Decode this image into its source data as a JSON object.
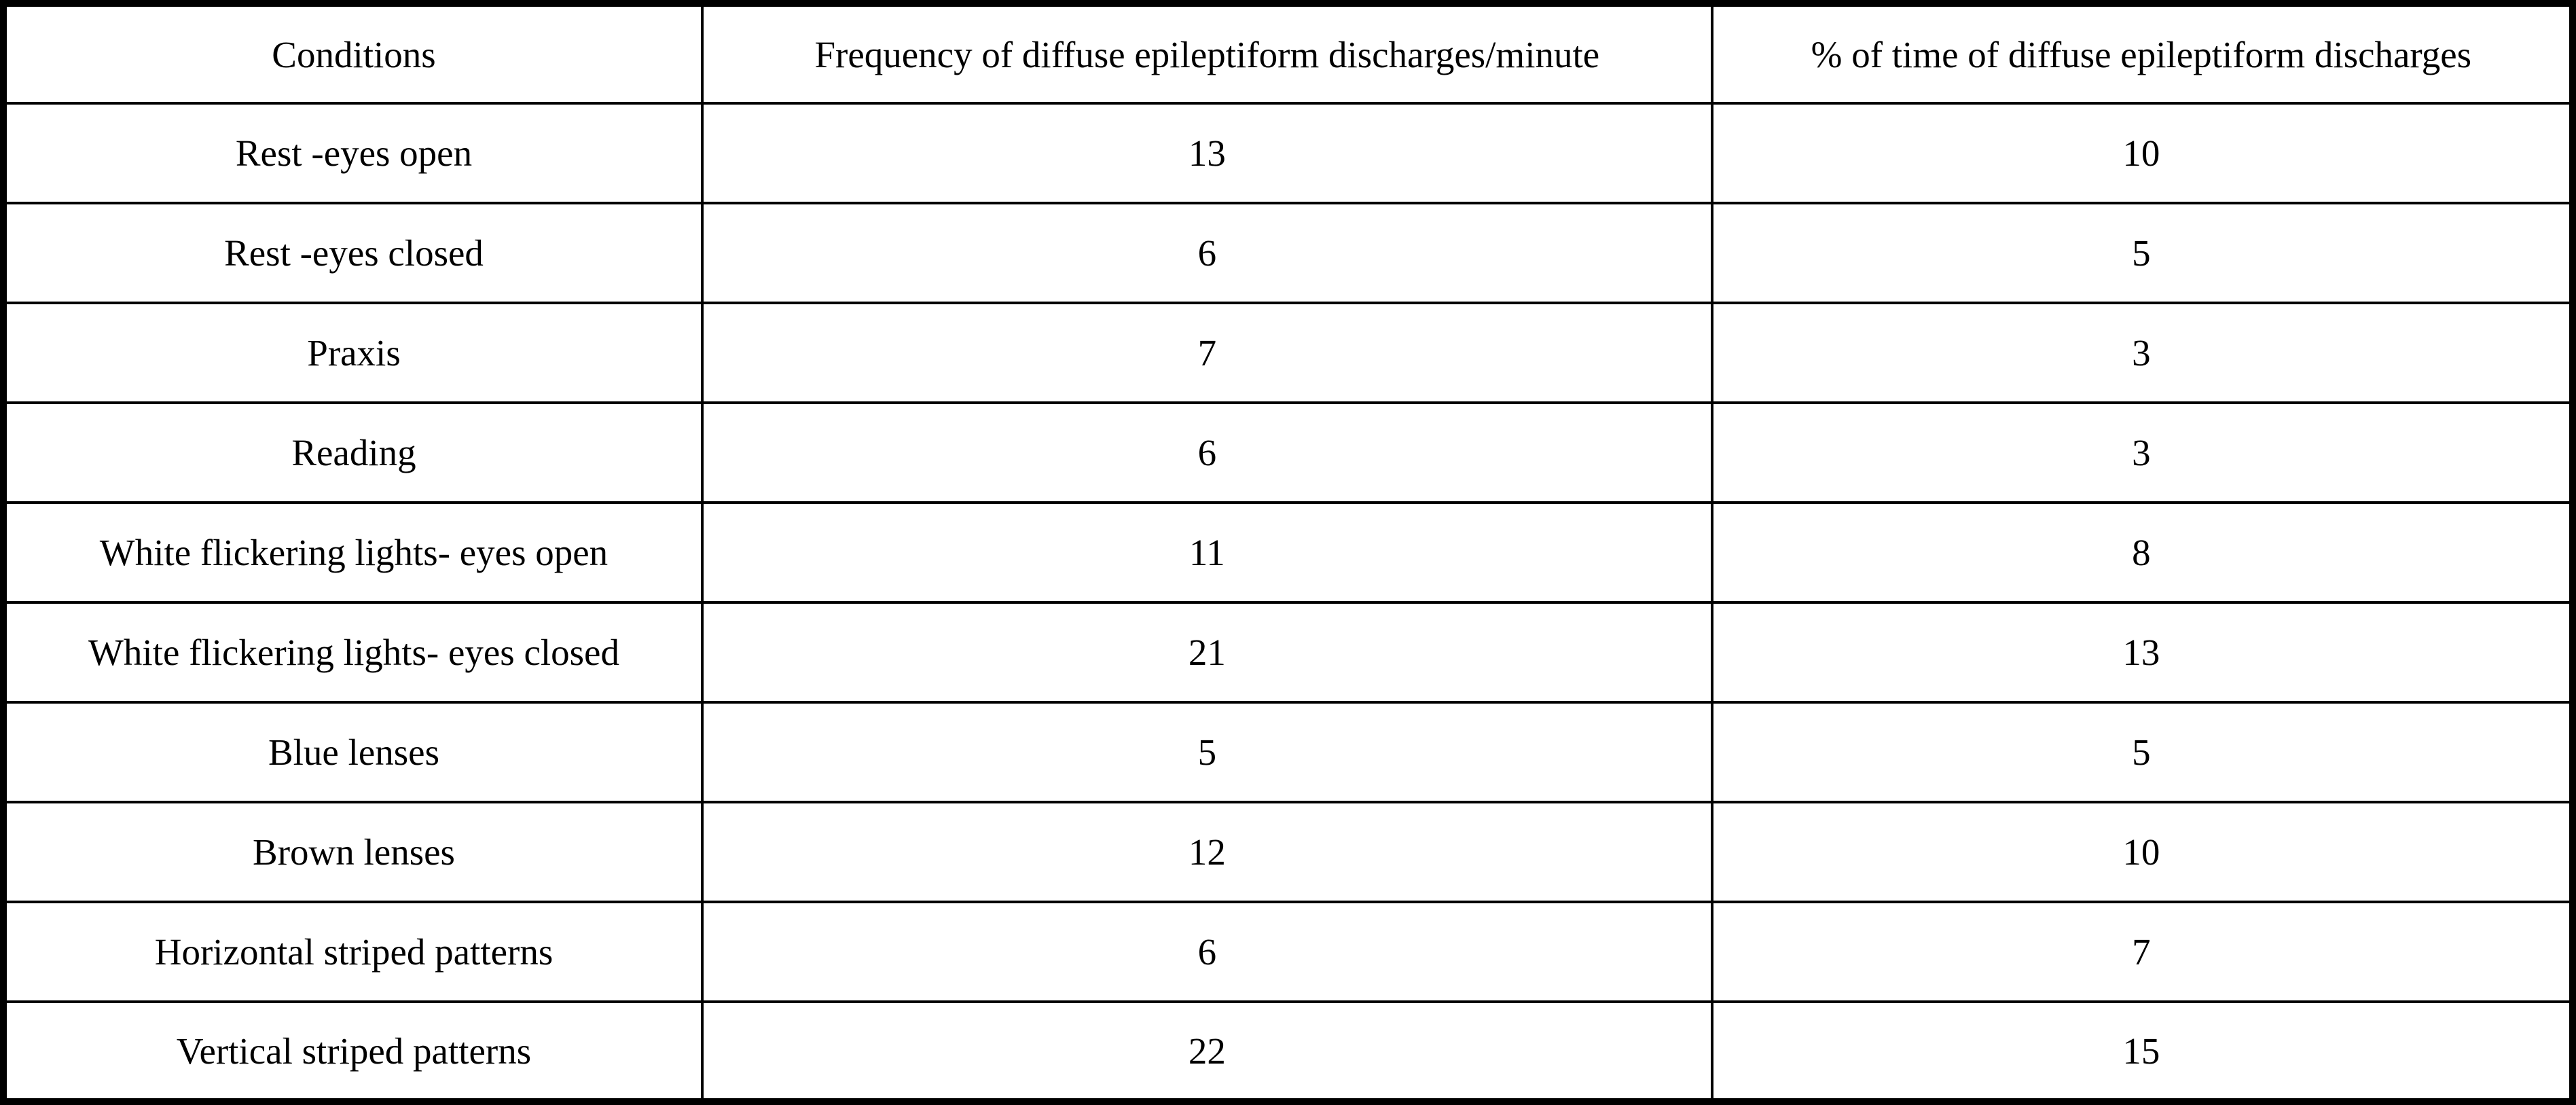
{
  "table": {
    "columns": [
      {
        "key": "condition",
        "label": "Conditions"
      },
      {
        "key": "frequency",
        "label": "Frequency of diffuse epileptiform discharges/minute"
      },
      {
        "key": "percent",
        "label": "% of time of diffuse epileptiform discharges"
      }
    ],
    "rows": [
      {
        "condition": "Rest -eyes open",
        "frequency": "13",
        "percent": "10"
      },
      {
        "condition": "Rest -eyes closed",
        "frequency": "6",
        "percent": "5"
      },
      {
        "condition": "Praxis",
        "frequency": "7",
        "percent": "3"
      },
      {
        "condition": "Reading",
        "frequency": "6",
        "percent": "3"
      },
      {
        "condition": "White flickering lights- eyes open",
        "frequency": "11",
        "percent": "8"
      },
      {
        "condition": "White flickering lights- eyes closed",
        "frequency": "21",
        "percent": "13"
      },
      {
        "condition": "Blue lenses",
        "frequency": "5",
        "percent": "5"
      },
      {
        "condition": "Brown lenses",
        "frequency": "12",
        "percent": "10"
      },
      {
        "condition": "Horizontal striped patterns",
        "frequency": "6",
        "percent": "7"
      },
      {
        "condition": "Vertical striped patterns",
        "frequency": "22",
        "percent": "15"
      }
    ],
    "border_color": "#000000",
    "background_color": "#ffffff"
  },
  "chart_data": {
    "type": "table",
    "columns": [
      "Conditions",
      "Frequency of diffuse epileptiform discharges/minute",
      "% of time of diffuse epileptiform discharges"
    ],
    "categories": [
      "Rest -eyes open",
      "Rest -eyes closed",
      "Praxis",
      "Reading",
      "White flickering lights- eyes open",
      "White flickering lights- eyes closed",
      "Blue lenses",
      "Brown lenses",
      "Horizontal striped patterns",
      "Vertical striped patterns"
    ],
    "series": [
      {
        "name": "Frequency of diffuse epileptiform discharges/minute",
        "values": [
          13,
          6,
          7,
          6,
          11,
          21,
          5,
          12,
          6,
          22
        ]
      },
      {
        "name": "% of time of diffuse epileptiform discharges",
        "values": [
          10,
          5,
          3,
          3,
          8,
          13,
          5,
          10,
          7,
          15
        ]
      }
    ]
  }
}
